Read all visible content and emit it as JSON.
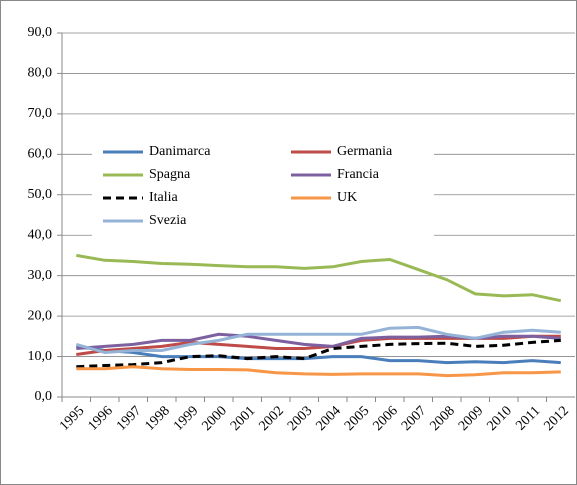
{
  "chart_data": {
    "type": "line",
    "categories": [
      "1995",
      "1996",
      "1997",
      "1998",
      "1999",
      "2000",
      "2001",
      "2002",
      "2003",
      "2004",
      "2005",
      "2006",
      "2007",
      "2008",
      "2009",
      "2010",
      "2011",
      "2012"
    ],
    "ylim": [
      0,
      90
    ],
    "yticks": [
      {
        "value": 0,
        "label": "0,0"
      },
      {
        "value": 10,
        "label": "10,0"
      },
      {
        "value": 20,
        "label": "20,0"
      },
      {
        "value": 30,
        "label": "30,0"
      },
      {
        "value": 40,
        "label": "40,0"
      },
      {
        "value": 50,
        "label": "50,0"
      },
      {
        "value": 60,
        "label": "60,0"
      },
      {
        "value": 70,
        "label": "70,0"
      },
      {
        "value": 80,
        "label": "80,0"
      },
      {
        "value": 90,
        "label": "90,0"
      }
    ],
    "grid": true,
    "series": [
      {
        "name": "Danimarca",
        "color": "#4a7ebb",
        "dashed": false,
        "values": [
          12.5,
          11.5,
          11,
          10,
          10,
          10,
          9.5,
          9.5,
          9.5,
          10,
          10,
          9,
          9,
          8.5,
          8.7,
          8.5,
          9,
          8.5
        ]
      },
      {
        "name": "Germania",
        "color": "#be4b48",
        "dashed": false,
        "values": [
          10.5,
          11.5,
          12,
          12.5,
          13.5,
          13,
          12.5,
          12,
          12,
          12.5,
          14,
          14.5,
          14.5,
          14.5,
          14.5,
          14.5,
          15,
          15
        ]
      },
      {
        "name": "Spagna",
        "color": "#98b954",
        "dashed": false,
        "values": [
          35,
          33.8,
          33.5,
          33,
          32.8,
          32.5,
          32.2,
          32.2,
          31.8,
          32.2,
          33.5,
          34,
          31.5,
          29,
          25.5,
          25,
          25.3,
          23.8
        ]
      },
      {
        "name": "Francia",
        "color": "#7d60a0",
        "dashed": false,
        "values": [
          12,
          12.5,
          13,
          14,
          14,
          15.5,
          15,
          14,
          13,
          12.5,
          14.5,
          14.8,
          14.8,
          15,
          14.5,
          15,
          15,
          14.5
        ]
      },
      {
        "name": "Italia",
        "color": "#000000",
        "dashed": true,
        "values": [
          7.5,
          7.8,
          8,
          8.5,
          10,
          10.2,
          9.5,
          10,
          9.5,
          12,
          12.5,
          13,
          13.2,
          13.3,
          12.5,
          12.8,
          13.5,
          14
        ]
      },
      {
        "name": "UK",
        "color": "#f79646",
        "dashed": false,
        "values": [
          7,
          7,
          7.5,
          7,
          6.8,
          6.8,
          6.7,
          6,
          5.7,
          5.6,
          5.7,
          5.7,
          5.7,
          5.3,
          5.5,
          6,
          6,
          6.2
        ]
      },
      {
        "name": "Svezia",
        "color": "#95b3d7",
        "dashed": false,
        "values": [
          13,
          11,
          11.5,
          11.5,
          13,
          14,
          15.5,
          15.5,
          15.5,
          15.5,
          15.5,
          17,
          17.2,
          15.5,
          14.5,
          16,
          16.5,
          16
        ]
      }
    ]
  }
}
